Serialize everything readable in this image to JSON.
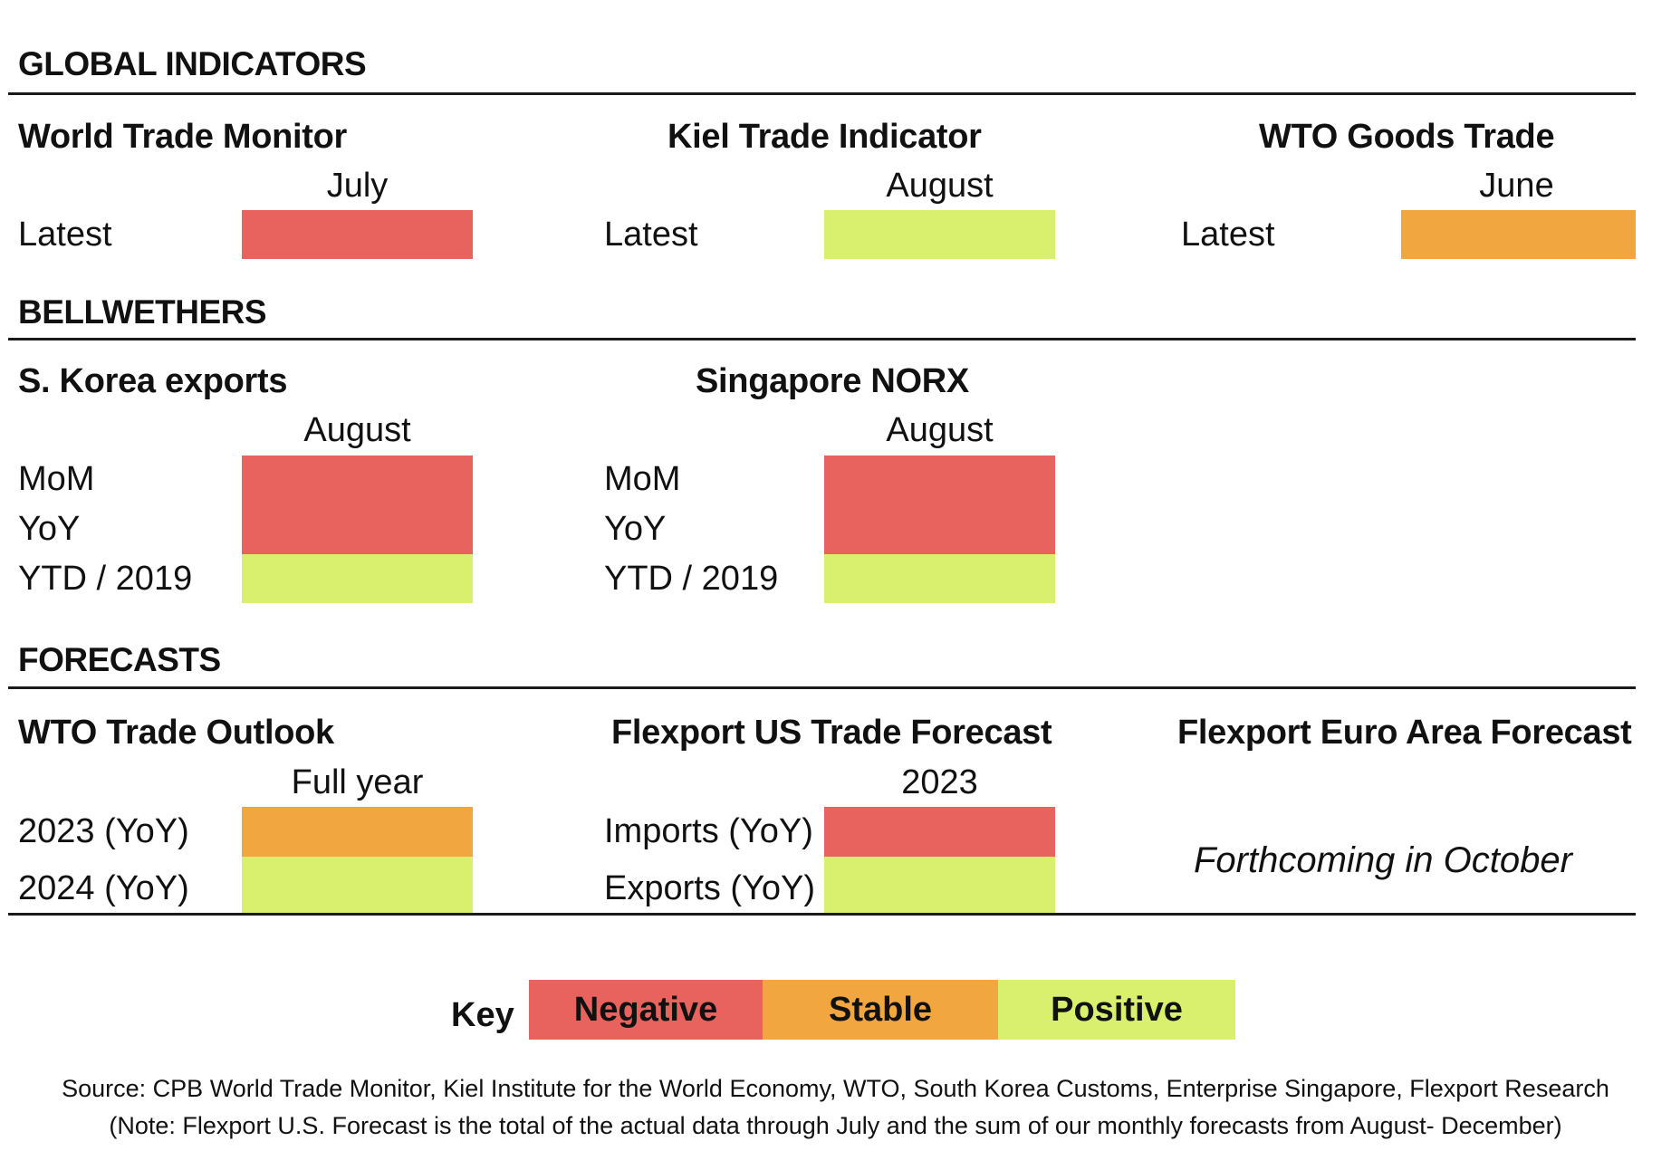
{
  "colors": {
    "negative": "#e8625e",
    "stable": "#f2a63f",
    "positive": "#d9f06e"
  },
  "global": {
    "title": "GLOBAL INDICATORS",
    "indicators": [
      {
        "name": "World Trade Monitor",
        "period": "July",
        "label": "Latest",
        "status": "negative"
      },
      {
        "name": "Kiel Trade Indicator",
        "period": "August",
        "label": "Latest",
        "status": "positive"
      },
      {
        "name": "WTO Goods Trade",
        "period": "June",
        "label": "Latest",
        "status": "stable"
      }
    ]
  },
  "bellwethers": {
    "title": "BELLWETHERS",
    "indicators": [
      {
        "name": "S. Korea exports",
        "period": "August",
        "rows": [
          {
            "label": "MoM",
            "status": "negative"
          },
          {
            "label": "YoY",
            "status": "negative"
          },
          {
            "label": "YTD / 2019",
            "status": "positive"
          }
        ]
      },
      {
        "name": "Singapore NORX",
        "period": "August",
        "rows": [
          {
            "label": "MoM",
            "status": "negative"
          },
          {
            "label": "YoY",
            "status": "negative"
          },
          {
            "label": "YTD / 2019",
            "status": "positive"
          }
        ]
      }
    ]
  },
  "forecasts": {
    "title": "FORECASTS",
    "indicators": [
      {
        "name": "WTO Trade Outlook",
        "period": "Full year",
        "rows": [
          {
            "label": "2023 (YoY)",
            "status": "stable"
          },
          {
            "label": "2024 (YoY)",
            "status": "positive"
          }
        ]
      },
      {
        "name": "Flexport US Trade Forecast",
        "period": "2023",
        "rows": [
          {
            "label": "Imports (YoY)",
            "status": "negative"
          },
          {
            "label": "Exports (YoY)",
            "status": "positive"
          }
        ]
      },
      {
        "name": "Flexport Euro Area Forecast",
        "note": "Forthcoming in October"
      }
    ]
  },
  "key": {
    "label": "Key",
    "negative": "Negative",
    "stable": "Stable",
    "positive": "Positive"
  },
  "source": {
    "line1": "Source: CPB World Trade Monitor, Kiel Institute for the World Economy, WTO, South Korea Customs, Enterprise Singapore, Flexport Research",
    "line2": "(Note: Flexport U.S. Forecast is the total of the actual data through July and the sum of our monthly forecasts from August- December)"
  }
}
